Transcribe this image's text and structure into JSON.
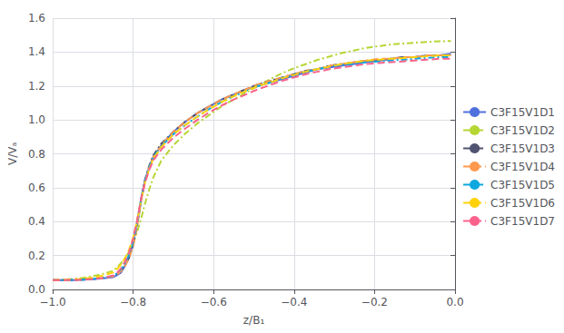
{
  "chart_data": {
    "type": "line",
    "xlabel": "z/B₁",
    "ylabel": "V/Vₐ",
    "xlim": [
      -1.0,
      0.0
    ],
    "ylim": [
      0.0,
      1.6
    ],
    "xticks": [
      {
        "value": -1.0,
        "label": "−1.0"
      },
      {
        "value": -0.8,
        "label": "−0.8"
      },
      {
        "value": -0.6,
        "label": "−0.6"
      },
      {
        "value": -0.4,
        "label": "−0.4"
      },
      {
        "value": -0.2,
        "label": "−0.2"
      },
      {
        "value": 0.0,
        "label": "0.0"
      }
    ],
    "yticks": [
      {
        "value": 0.0,
        "label": "0.0"
      },
      {
        "value": 0.2,
        "label": "0.2"
      },
      {
        "value": 0.4,
        "label": "0.4"
      },
      {
        "value": 0.6,
        "label": "0.6"
      },
      {
        "value": 0.8,
        "label": "0.8"
      },
      {
        "value": 1.0,
        "label": "1.0"
      },
      {
        "value": 1.2,
        "label": "1.2"
      },
      {
        "value": 1.4,
        "label": "1.4"
      },
      {
        "value": 1.6,
        "label": "1.6"
      }
    ],
    "grid": true,
    "legend": "right",
    "x": [
      -1.0,
      -0.975,
      -0.95,
      -0.925,
      -0.9,
      -0.875,
      -0.85,
      -0.84,
      -0.83,
      -0.82,
      -0.81,
      -0.8,
      -0.79,
      -0.78,
      -0.77,
      -0.76,
      -0.75,
      -0.73,
      -0.7,
      -0.67,
      -0.64,
      -0.61,
      -0.58,
      -0.55,
      -0.52,
      -0.49,
      -0.46,
      -0.43,
      -0.4,
      -0.37,
      -0.34,
      -0.31,
      -0.28,
      -0.25,
      -0.22,
      -0.19,
      -0.16,
      -0.13,
      -0.1,
      -0.07,
      -0.04,
      -0.01
    ],
    "series": [
      {
        "name": "C3F15V1D1",
        "line_style": "solid",
        "values": [
          0.055,
          0.055,
          0.055,
          0.057,
          0.06,
          0.065,
          0.072,
          0.085,
          0.1,
          0.14,
          0.19,
          0.28,
          0.4,
          0.54,
          0.65,
          0.72,
          0.78,
          0.85,
          0.93,
          0.99,
          1.04,
          1.08,
          1.12,
          1.15,
          1.18,
          1.2,
          1.22,
          1.24,
          1.26,
          1.28,
          1.3,
          1.31,
          1.32,
          1.33,
          1.34,
          1.35,
          1.36,
          1.37,
          1.37,
          1.38,
          1.38,
          1.39
        ]
      },
      {
        "name": "C3F15V1D2",
        "line_style": "dashdot",
        "values": [
          0.055,
          0.058,
          0.062,
          0.068,
          0.078,
          0.092,
          0.11,
          0.13,
          0.155,
          0.185,
          0.22,
          0.27,
          0.34,
          0.42,
          0.51,
          0.59,
          0.66,
          0.76,
          0.85,
          0.92,
          0.98,
          1.03,
          1.08,
          1.12,
          1.16,
          1.2,
          1.24,
          1.275,
          1.305,
          1.33,
          1.355,
          1.375,
          1.395,
          1.41,
          1.425,
          1.435,
          1.445,
          1.45,
          1.455,
          1.46,
          1.463,
          1.465
        ]
      },
      {
        "name": "C3F15V1D3",
        "line_style": "dashdot",
        "values": [
          0.055,
          0.055,
          0.056,
          0.058,
          0.062,
          0.068,
          0.078,
          0.092,
          0.112,
          0.145,
          0.19,
          0.26,
          0.38,
          0.53,
          0.65,
          0.73,
          0.79,
          0.86,
          0.93,
          0.99,
          1.04,
          1.08,
          1.12,
          1.15,
          1.18,
          1.21,
          1.23,
          1.25,
          1.27,
          1.29,
          1.3,
          1.32,
          1.33,
          1.34,
          1.35,
          1.35,
          1.36,
          1.37,
          1.37,
          1.38,
          1.38,
          1.38
        ]
      },
      {
        "name": "C3F15V1D4",
        "line_style": "dashed",
        "values": [
          0.055,
          0.055,
          0.056,
          0.058,
          0.062,
          0.067,
          0.076,
          0.088,
          0.108,
          0.14,
          0.185,
          0.255,
          0.37,
          0.52,
          0.64,
          0.72,
          0.78,
          0.85,
          0.93,
          0.99,
          1.04,
          1.08,
          1.12,
          1.15,
          1.18,
          1.21,
          1.23,
          1.25,
          1.27,
          1.29,
          1.3,
          1.32,
          1.33,
          1.34,
          1.35,
          1.36,
          1.36,
          1.37,
          1.37,
          1.38,
          1.38,
          1.38
        ]
      },
      {
        "name": "C3F15V1D5",
        "line_style": "dashdot",
        "values": [
          0.055,
          0.055,
          0.056,
          0.058,
          0.062,
          0.068,
          0.08,
          0.095,
          0.12,
          0.155,
          0.205,
          0.28,
          0.39,
          0.53,
          0.645,
          0.72,
          0.78,
          0.845,
          0.915,
          0.97,
          1.02,
          1.065,
          1.105,
          1.14,
          1.17,
          1.2,
          1.22,
          1.245,
          1.265,
          1.285,
          1.3,
          1.315,
          1.325,
          1.33,
          1.34,
          1.345,
          1.35,
          1.355,
          1.36,
          1.365,
          1.37,
          1.37
        ]
      },
      {
        "name": "C3F15V1D6",
        "line_style": "dashed",
        "values": [
          0.055,
          0.056,
          0.058,
          0.063,
          0.07,
          0.082,
          0.1,
          0.12,
          0.148,
          0.185,
          0.235,
          0.305,
          0.405,
          0.53,
          0.635,
          0.71,
          0.77,
          0.84,
          0.915,
          0.97,
          1.02,
          1.065,
          1.105,
          1.14,
          1.17,
          1.2,
          1.22,
          1.245,
          1.265,
          1.285,
          1.3,
          1.315,
          1.33,
          1.34,
          1.35,
          1.355,
          1.36,
          1.365,
          1.37,
          1.375,
          1.38,
          1.38
        ]
      },
      {
        "name": "C3F15V1D7",
        "line_style": "dashed",
        "values": [
          0.055,
          0.055,
          0.056,
          0.058,
          0.062,
          0.068,
          0.082,
          0.098,
          0.125,
          0.165,
          0.22,
          0.3,
          0.41,
          0.535,
          0.635,
          0.705,
          0.76,
          0.825,
          0.895,
          0.95,
          1.0,
          1.045,
          1.085,
          1.12,
          1.15,
          1.18,
          1.205,
          1.23,
          1.25,
          1.27,
          1.285,
          1.3,
          1.31,
          1.32,
          1.33,
          1.335,
          1.34,
          1.345,
          1.35,
          1.355,
          1.36,
          1.36
        ]
      }
    ]
  }
}
